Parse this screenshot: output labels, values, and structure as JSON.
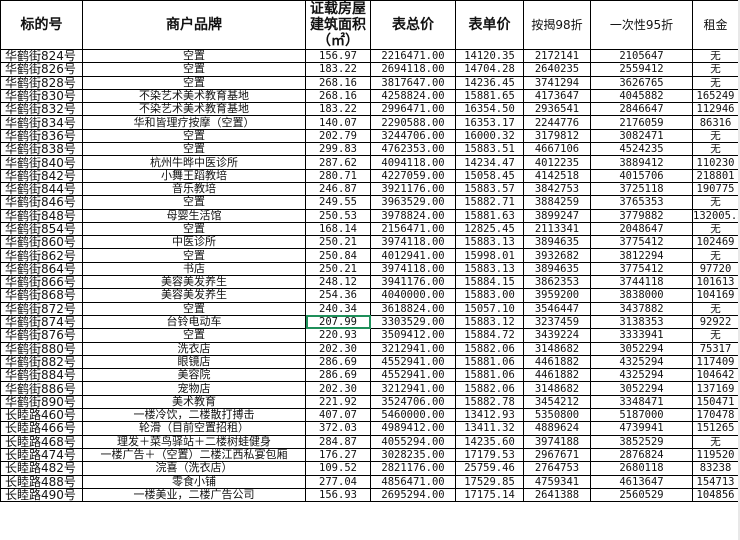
{
  "selection_color": "#1f8f5a",
  "selected_cell": {
    "row": 20,
    "column": "area"
  },
  "headers": {
    "id": "标的号",
    "brand": "商户品牌",
    "area_line1": "证载房屋",
    "area_line2": "建筑面积",
    "area_line3": "（㎡）",
    "total": "表总价",
    "unit": "表单价",
    "mortgage": "按揭98折",
    "lump": "一次性95折",
    "rent": "租金"
  },
  "rows": [
    {
      "id": "华鹤街824号",
      "brand": "空置",
      "area": "156.97",
      "total": "2216471.00",
      "unit": "14120.35",
      "mortgage": "2172141",
      "lump": "2105647",
      "rent": "无"
    },
    {
      "id": "华鹤街826号",
      "brand": "空置",
      "area": "183.22",
      "total": "2694118.00",
      "unit": "14704.28",
      "mortgage": "2640235",
      "lump": "2559412",
      "rent": "无"
    },
    {
      "id": "华鹤街828号",
      "brand": "空置",
      "area": "268.16",
      "total": "3817647.00",
      "unit": "14236.45",
      "mortgage": "3741294",
      "lump": "3626765",
      "rent": "无"
    },
    {
      "id": "华鹤街830号",
      "brand": "不染艺术美术教育基地",
      "area": "268.16",
      "total": "4258824.00",
      "unit": "15881.65",
      "mortgage": "4173647",
      "lump": "4045882",
      "rent": "165249"
    },
    {
      "id": "华鹤街832号",
      "brand": "不染艺术美术教育基地",
      "area": "183.22",
      "total": "2996471.00",
      "unit": "16354.50",
      "mortgage": "2936541",
      "lump": "2846647",
      "rent": "112946"
    },
    {
      "id": "华鹤街834号",
      "brand": "华和皆理疗按摩（空置）",
      "area": "140.07",
      "total": "2290588.00",
      "unit": "16353.17",
      "mortgage": "2244776",
      "lump": "2176059",
      "rent": "86316"
    },
    {
      "id": "华鹤街836号",
      "brand": "空置",
      "area": "202.79",
      "total": "3244706.00",
      "unit": "16000.32",
      "mortgage": "3179812",
      "lump": "3082471",
      "rent": "无"
    },
    {
      "id": "华鹤街838号",
      "brand": "空置",
      "area": "299.83",
      "total": "4762353.00",
      "unit": "15883.51",
      "mortgage": "4667106",
      "lump": "4524235",
      "rent": "无"
    },
    {
      "id": "华鹤街840号",
      "brand": "杭州牛晔中医诊所",
      "area": "287.62",
      "total": "4094118.00",
      "unit": "14234.47",
      "mortgage": "4012235",
      "lump": "3889412",
      "rent": "110230"
    },
    {
      "id": "华鹤街842号",
      "brand": "小舞王蹈教培",
      "area": "280.71",
      "total": "4227059.00",
      "unit": "15058.45",
      "mortgage": "4142518",
      "lump": "4015706",
      "rent": "218801"
    },
    {
      "id": "华鹤街844号",
      "brand": "音乐教培",
      "area": "246.87",
      "total": "3921176.00",
      "unit": "15883.57",
      "mortgage": "3842753",
      "lump": "3725118",
      "rent": "190775"
    },
    {
      "id": "华鹤街846号",
      "brand": "空置",
      "area": "249.55",
      "total": "3963529.00",
      "unit": "15882.71",
      "mortgage": "3884259",
      "lump": "3765353",
      "rent": "无"
    },
    {
      "id": "华鹤街848号",
      "brand": "母婴生活馆",
      "area": "250.53",
      "total": "3978824.00",
      "unit": "15881.63",
      "mortgage": "3899247",
      "lump": "3779882",
      "rent": "132005.34"
    },
    {
      "id": "华鹤街854号",
      "brand": "空置",
      "area": "168.14",
      "total": "2156471.00",
      "unit": "12825.45",
      "mortgage": "2113341",
      "lump": "2048647",
      "rent": "无"
    },
    {
      "id": "华鹤街860号",
      "brand": "中医诊所",
      "area": "250.21",
      "total": "3974118.00",
      "unit": "15883.13",
      "mortgage": "3894635",
      "lump": "3775412",
      "rent": "102469"
    },
    {
      "id": "华鹤街862号",
      "brand": "空置",
      "area": "250.84",
      "total": "4012941.00",
      "unit": "15998.01",
      "mortgage": "3932682",
      "lump": "3812294",
      "rent": "无"
    },
    {
      "id": "华鹤街864号",
      "brand": "书店",
      "area": "250.21",
      "total": "3974118.00",
      "unit": "15883.13",
      "mortgage": "3894635",
      "lump": "3775412",
      "rent": "97720"
    },
    {
      "id": "华鹤街866号",
      "brand": "美容美发养生",
      "area": "248.12",
      "total": "3941176.00",
      "unit": "15884.15",
      "mortgage": "3862353",
      "lump": "3744118",
      "rent": "101613"
    },
    {
      "id": "华鹤街868号",
      "brand": "美容美发养生",
      "area": "254.36",
      "total": "4040000.00",
      "unit": "15883.00",
      "mortgage": "3959200",
      "lump": "3838000",
      "rent": "104169"
    },
    {
      "id": "华鹤街872号",
      "brand": "空置",
      "area": "240.34",
      "total": "3618824.00",
      "unit": "15057.10",
      "mortgage": "3546447",
      "lump": "3437882",
      "rent": "无"
    },
    {
      "id": "华鹤街874号",
      "brand": "台铃电动车",
      "area": "207.99",
      "total": "3303529.00",
      "unit": "15883.12",
      "mortgage": "3237459",
      "lump": "3138353",
      "rent": "92922"
    },
    {
      "id": "华鹤街876号",
      "brand": "空置",
      "area": "220.93",
      "total": "3509412.00",
      "unit": "15884.72",
      "mortgage": "3439224",
      "lump": "3333941",
      "rent": "无"
    },
    {
      "id": "华鹤街880号",
      "brand": "洗衣店",
      "area": "202.30",
      "total": "3212941.00",
      "unit": "15882.06",
      "mortgage": "3148682",
      "lump": "3052294",
      "rent": "75317"
    },
    {
      "id": "华鹤街882号",
      "brand": "眼镜店",
      "area": "286.69",
      "total": "4552941.00",
      "unit": "15881.06",
      "mortgage": "4461882",
      "lump": "4325294",
      "rent": "117409"
    },
    {
      "id": "华鹤街884号",
      "brand": "美容院",
      "area": "286.69",
      "total": "4552941.00",
      "unit": "15881.06",
      "mortgage": "4461882",
      "lump": "4325294",
      "rent": "104642"
    },
    {
      "id": "华鹤街886号",
      "brand": "宠物店",
      "area": "202.30",
      "total": "3212941.00",
      "unit": "15882.06",
      "mortgage": "3148682",
      "lump": "3052294",
      "rent": "137169"
    },
    {
      "id": "华鹤街890号",
      "brand": "美术教育",
      "area": "221.92",
      "total": "3524706.00",
      "unit": "15882.78",
      "mortgage": "3454212",
      "lump": "3348471",
      "rent": "150471"
    },
    {
      "id": "长睦路460号",
      "brand": "一楼冷饮，二楼散打搏击",
      "area": "407.07",
      "total": "5460000.00",
      "unit": "13412.93",
      "mortgage": "5350800",
      "lump": "5187000",
      "rent": "170478"
    },
    {
      "id": "长睦路466号",
      "brand": "轮滑（目前空置招租）",
      "area": "372.03",
      "total": "4989412.00",
      "unit": "13411.32",
      "mortgage": "4889624",
      "lump": "4739941",
      "rent": "151265"
    },
    {
      "id": "长睦路468号",
      "brand": "理发＋菜鸟驿站＋二楼树蛙健身",
      "area": "284.87",
      "total": "4055294.00",
      "unit": "14235.60",
      "mortgage": "3974188",
      "lump": "3852529",
      "rent": "无"
    },
    {
      "id": "长睦路474号",
      "brand": "一楼广告＋（空置）二楼江西私宴包厢",
      "area": "176.27",
      "total": "3028235.00",
      "unit": "17179.53",
      "mortgage": "2967671",
      "lump": "2876824",
      "rent": "119520"
    },
    {
      "id": "长睦路482号",
      "brand": "浣喜（洗衣店）",
      "area": "109.52",
      "total": "2821176.00",
      "unit": "25759.46",
      "mortgage": "2764753",
      "lump": "2680118",
      "rent": "83238"
    },
    {
      "id": "长睦路488号",
      "brand": "零食小铺",
      "area": "277.04",
      "total": "4856471.00",
      "unit": "17529.85",
      "mortgage": "4759341",
      "lump": "4613647",
      "rent": "154713"
    },
    {
      "id": "长睦路490号",
      "brand": "一楼美业，二楼广告公司",
      "area": "156.93",
      "total": "2695294.00",
      "unit": "17175.14",
      "mortgage": "2641388",
      "lump": "2560529",
      "rent": "104856"
    }
  ]
}
